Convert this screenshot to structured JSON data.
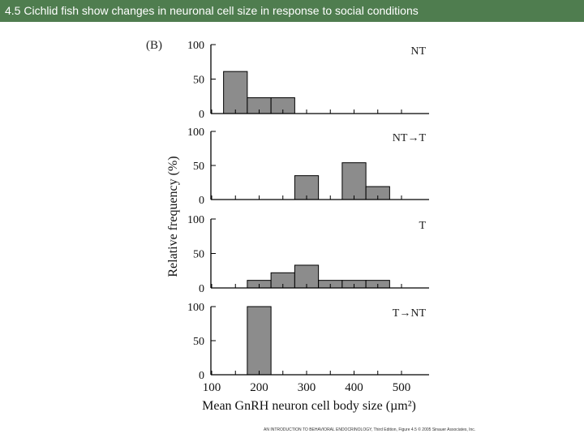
{
  "header": {
    "title": "4.5 Cichlid fish show changes in neuronal cell size in response to social conditions"
  },
  "colors": {
    "header_bg": "#4f7d4f",
    "bar_fill": "#8c8c8c",
    "axis": "#000000"
  },
  "chart_data": {
    "type": "bar",
    "panel_label": "(B)",
    "ylabel": "Relative frequency (%)",
    "xlabel": "Mean GnRH neuron cell body size (µm²)",
    "x_ticks": [
      100,
      200,
      300,
      400,
      500
    ],
    "x_tick_labels": [
      "100",
      "200",
      "300",
      "400",
      "500"
    ],
    "xlim": [
      75,
      525
    ],
    "ylim": [
      0,
      100
    ],
    "y_ticks": [
      0,
      50,
      100
    ],
    "y_tick_labels": [
      "0",
      "50",
      "100"
    ],
    "bin_width": 50,
    "series": [
      {
        "name": "NT",
        "bins": [
          {
            "x0": 125,
            "value": 61
          },
          {
            "x0": 175,
            "value": 23
          },
          {
            "x0": 225,
            "value": 23
          }
        ]
      },
      {
        "name": "NT→T",
        "bins": [
          {
            "x0": 275,
            "value": 35
          },
          {
            "x0": 375,
            "value": 54
          },
          {
            "x0": 425,
            "value": 19
          }
        ]
      },
      {
        "name": "T",
        "bins": [
          {
            "x0": 175,
            "value": 11
          },
          {
            "x0": 225,
            "value": 22
          },
          {
            "x0": 275,
            "value": 33
          },
          {
            "x0": 325,
            "value": 11
          },
          {
            "x0": 375,
            "value": 11
          },
          {
            "x0": 425,
            "value": 11
          }
        ]
      },
      {
        "name": "T→NT",
        "bins": [
          {
            "x0": 175,
            "value": 100
          }
        ]
      }
    ]
  },
  "footer": {
    "citation": "AN INTRODUCTION TO BEHAVIORAL ENDOCRINOLOGY, Third Edition, Figure 4.5 © 2005 Sinauer Associates, Inc."
  }
}
